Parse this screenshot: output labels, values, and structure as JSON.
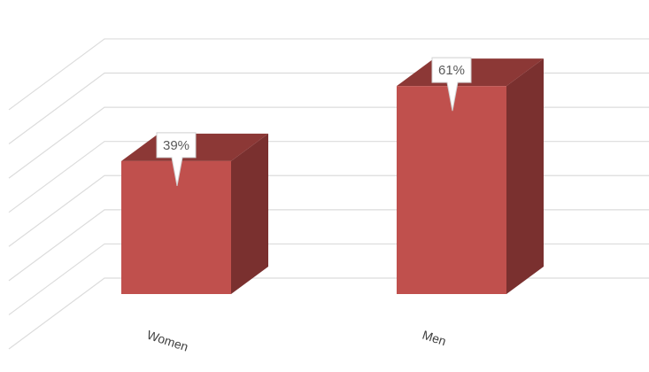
{
  "chart_data": {
    "type": "bar",
    "style": "3d-column",
    "categories": [
      "Women",
      "Men"
    ],
    "values": [
      39,
      61
    ],
    "data_labels": [
      "39%",
      "61%"
    ],
    "ylim": [
      0,
      90
    ],
    "grid": true,
    "legend": "none",
    "colors": {
      "bar_front": "#c0504d",
      "bar_top": "#8c3836",
      "bar_side": "#7a302f",
      "grid": "#dcdcdc"
    }
  }
}
